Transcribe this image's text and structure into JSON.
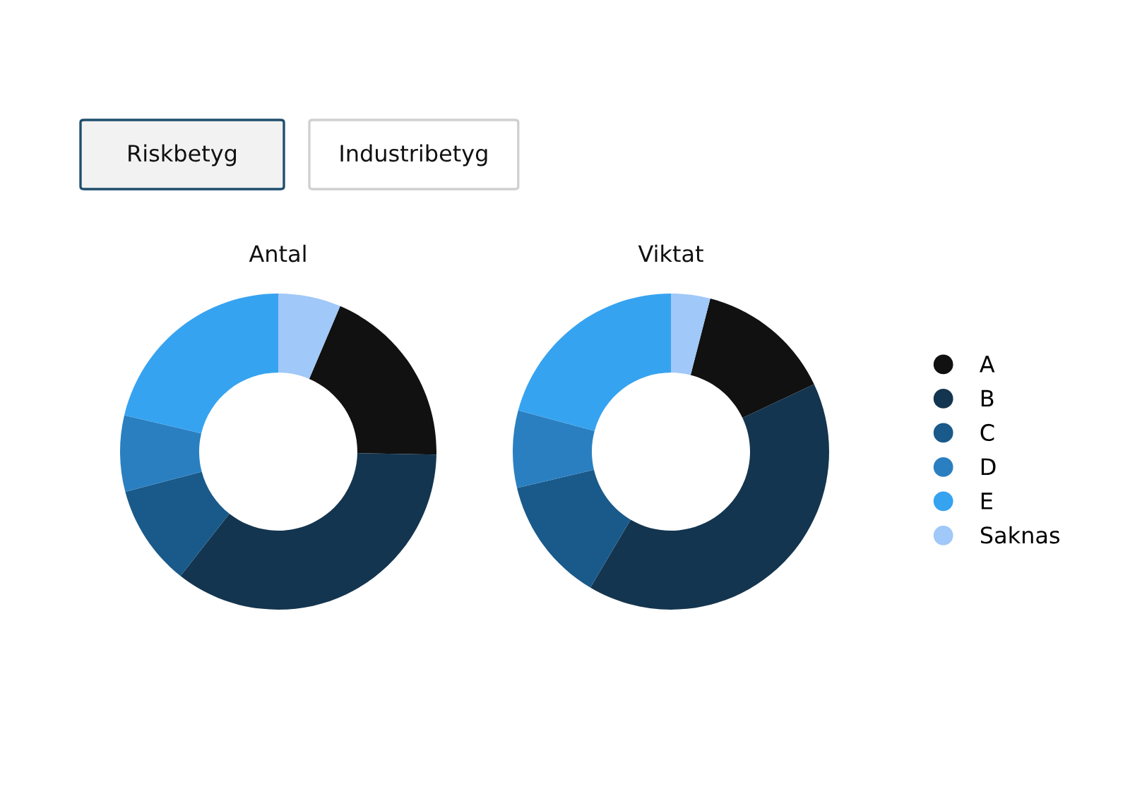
{
  "chart_data": [
    {
      "type": "donut",
      "title": "Antal",
      "categories": [
        "A",
        "B",
        "C",
        "D",
        "E",
        "Saknas"
      ],
      "values": [
        18.9,
        35.3,
        10.3,
        7.8,
        21.3,
        6.4
      ],
      "colors": [
        "#111111",
        "#14354f",
        "#1a5a8a",
        "#2a7fc0",
        "#36a3f0",
        "#a0c8f8"
      ],
      "annotations": [
        "Riskbetyg",
        "Industribetyg"
      ],
      "legend": "right"
    },
    {
      "type": "donut",
      "title": "Viktat",
      "categories": [
        null,
        null,
        null,
        null,
        null,
        null
      ],
      "values": [
        14.0,
        40.5,
        12.8,
        7.9,
        20.8,
        4.0
      ],
      "colors": [
        "#111111",
        "#14354f",
        "#1a5a8a",
        "#2a7fc0",
        "#36a3f0",
        "#a0c8f8"
      ]
    }
  ]
}
